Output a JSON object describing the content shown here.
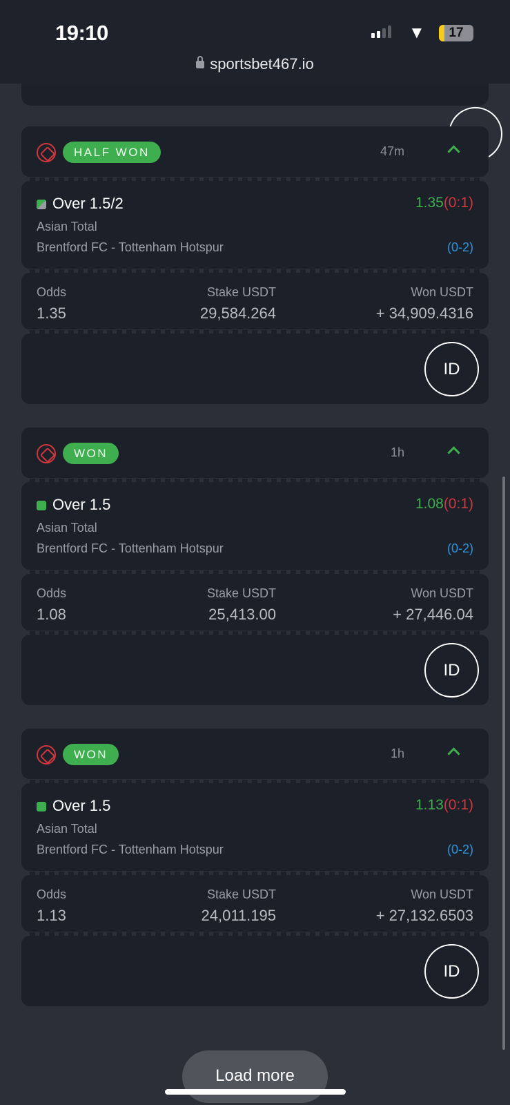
{
  "status_bar": {
    "time": "19:10",
    "battery": "17",
    "url": "sportsbet467.io"
  },
  "colors": {
    "won": "#3fae4f",
    "loss": "#d0373d",
    "score": "#2d95dd"
  },
  "bets": [
    {
      "status": "HALF WON",
      "ago": "47m",
      "selection": "Over 1.5/2",
      "half": true,
      "market": "Asian Total",
      "match": "Brentford FC - Tottenham Hotspur",
      "odds_display": "1.35",
      "score_at_bet": "(0:1)",
      "final_score": "(0-2)",
      "odds_label": "Odds",
      "odds": "1.35",
      "stake_label": "Stake USDT",
      "stake": "29,584.264",
      "won_label": "Won USDT",
      "won": "+ 34,909.4316",
      "id_label": "ID"
    },
    {
      "status": "WON",
      "ago": "1h",
      "selection": "Over 1.5",
      "half": false,
      "market": "Asian Total",
      "match": "Brentford FC - Tottenham Hotspur",
      "odds_display": "1.08",
      "score_at_bet": "(0:1)",
      "final_score": "(0-2)",
      "odds_label": "Odds",
      "odds": "1.08",
      "stake_label": "Stake USDT",
      "stake": "25,413.00",
      "won_label": "Won USDT",
      "won": "+ 27,446.04",
      "id_label": "ID"
    },
    {
      "status": "WON",
      "ago": "1h",
      "selection": "Over 1.5",
      "half": false,
      "market": "Asian Total",
      "match": "Brentford FC - Tottenham Hotspur",
      "odds_display": "1.13",
      "score_at_bet": "(0:1)",
      "final_score": "(0-2)",
      "odds_label": "Odds",
      "odds": "1.13",
      "stake_label": "Stake USDT",
      "stake": "24,011.195",
      "won_label": "Won USDT",
      "won": "+ 27,132.6503",
      "id_label": "ID"
    }
  ],
  "load_more": "Load more"
}
